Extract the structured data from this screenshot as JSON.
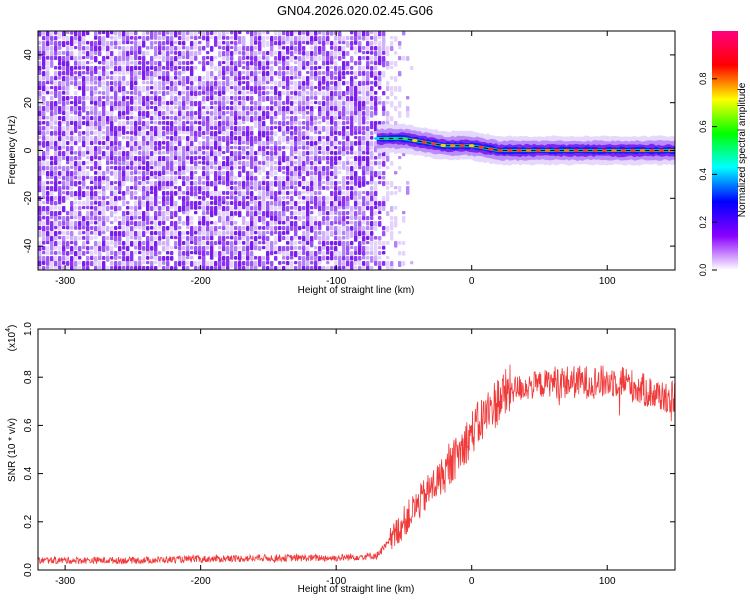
{
  "title": "GN04.2026.020.02.45.G06",
  "chart_data": [
    {
      "type": "heatmap",
      "xlabel": "Height of straight line (km)",
      "ylabel": "Frequency (Hz)",
      "xlim": [
        -320,
        150
      ],
      "ylim": [
        -50,
        50
      ],
      "xticks": [
        -300,
        -200,
        -100,
        0,
        100
      ],
      "yticks": [
        -40,
        -20,
        0,
        20,
        40
      ],
      "noise_region_x": [
        -320,
        -55
      ],
      "signal_trace": {
        "x": [
          -70,
          -60,
          -50,
          -40,
          -30,
          -20,
          -10,
          0,
          10,
          20,
          30,
          50,
          70,
          90,
          110,
          130,
          150
        ],
        "y": [
          5,
          5,
          5,
          4,
          3,
          2,
          2,
          2,
          1,
          0,
          0,
          0,
          0,
          0,
          0,
          0,
          0
        ]
      },
      "colorbar": {
        "label": "Normalized spectral amplitude",
        "range": [
          0,
          1
        ],
        "ticks": [
          "0.0",
          "0.2",
          "0.4",
          "0.6",
          "0.8"
        ],
        "colors": [
          "#ffffff",
          "#8a00ff",
          "#0000ff",
          "#00ffff",
          "#00ff00",
          "#ffff00",
          "#ff0000",
          "#ff0080"
        ]
      },
      "grid": false
    },
    {
      "type": "line",
      "xlabel": "Height of straight line (km)",
      "ylabel": "SNR (10 * v/v)",
      "ylabel_scale": "(x10",
      "ylabel_exponent": "4",
      "ylabel_scale_close": ")",
      "xlim": [
        -320,
        150
      ],
      "ylim": [
        0,
        1
      ],
      "xticks": [
        -300,
        -200,
        -100,
        0,
        100
      ],
      "yticks": [
        "0.0",
        "0.2",
        "0.4",
        "0.6",
        "0.8",
        "1.0"
      ],
      "series": [
        {
          "color": "#f03a3a",
          "x": [
            -320,
            -250,
            -150,
            -100,
            -70,
            -60,
            -50,
            -40,
            -30,
            -20,
            -10,
            0,
            10,
            20,
            30,
            40,
            60,
            80,
            100,
            110,
            120,
            135,
            150
          ],
          "y": [
            0.04,
            0.04,
            0.05,
            0.05,
            0.06,
            0.12,
            0.2,
            0.27,
            0.34,
            0.4,
            0.48,
            0.57,
            0.64,
            0.71,
            0.75,
            0.76,
            0.78,
            0.78,
            0.78,
            0.79,
            0.76,
            0.73,
            0.71
          ]
        }
      ],
      "grid": false
    }
  ]
}
